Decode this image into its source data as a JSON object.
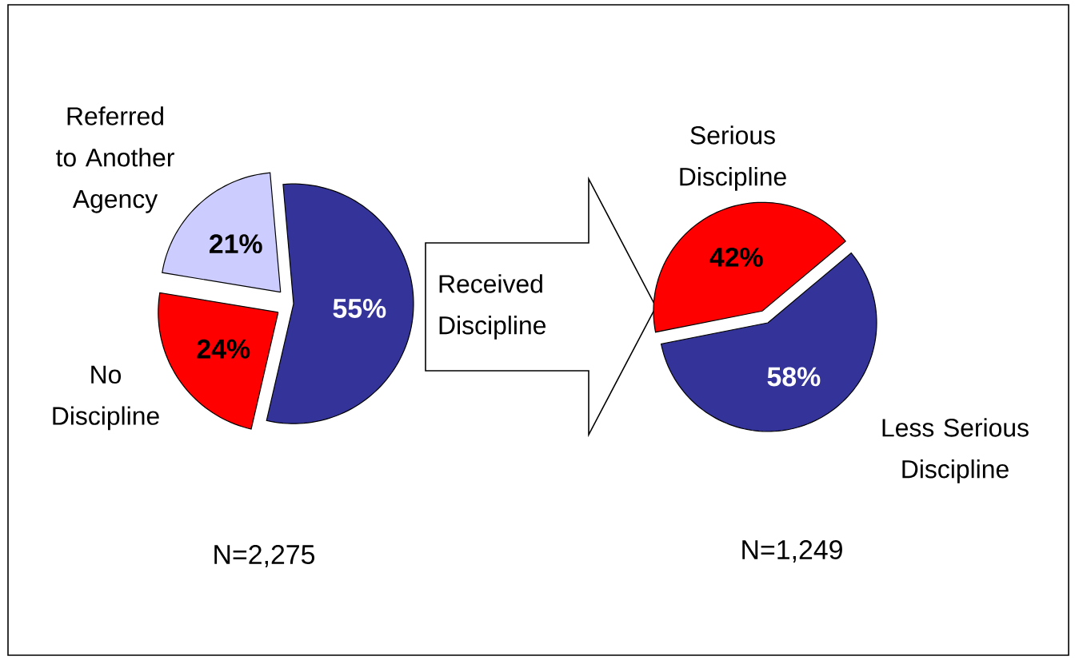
{
  "chart_data": [
    {
      "type": "pie",
      "categories": [
        "Referred to Another Agency",
        "No Discipline",
        null
      ],
      "values": [
        21,
        24,
        55
      ],
      "colors": [
        "#ccccff",
        "#ff0000",
        "#333399"
      ],
      "value_labels": [
        "21%",
        "24%",
        "55%"
      ],
      "annotations": [
        "Received Discipline",
        "N=2,275"
      ]
    },
    {
      "type": "pie",
      "categories": [
        "Serious Discipline",
        "Less Serious Discipline"
      ],
      "values": [
        42,
        58
      ],
      "colors": [
        "#ff0000",
        "#333399"
      ],
      "value_labels": [
        "42%",
        "58%"
      ],
      "annotations": [
        "N=1,249"
      ]
    }
  ]
}
